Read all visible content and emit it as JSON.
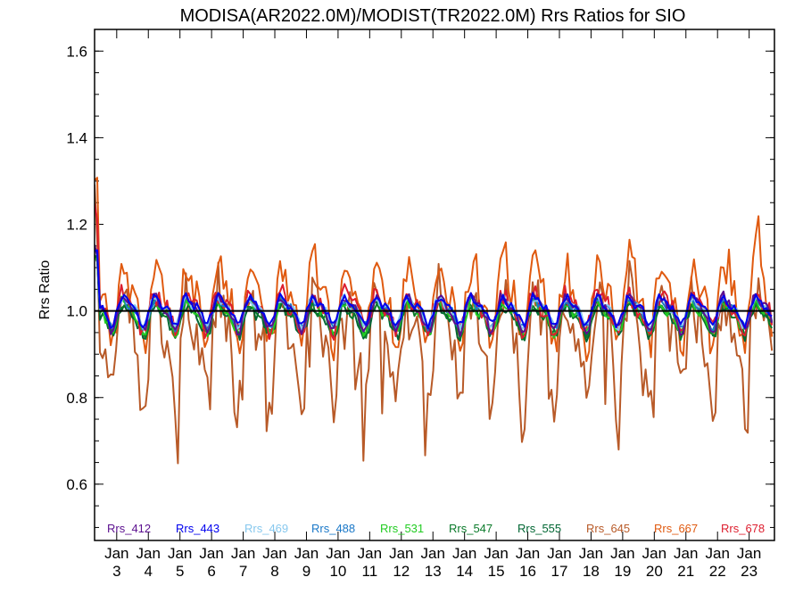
{
  "chart_data": {
    "type": "line",
    "title": "MODISA(AR2022.0M)/MODIST(TR2022.0M)  Rrs Ratios for SIO",
    "xlabel": "",
    "ylabel": "Rrs Ratio",
    "ylim": [
      0.47,
      1.65
    ],
    "yticks": [
      "0.6",
      "0.8",
      "1.0",
      "1.2",
      "1.4",
      "1.6"
    ],
    "xlim": [
      2.3,
      23.8
    ],
    "xticks": [
      {
        "v": 3,
        "top": "Jan",
        "bot": "3"
      },
      {
        "v": 4,
        "top": "Jan",
        "bot": "4"
      },
      {
        "v": 5,
        "top": "Jan",
        "bot": "5"
      },
      {
        "v": 6,
        "top": "Jan",
        "bot": "6"
      },
      {
        "v": 7,
        "top": "Jan",
        "bot": "7"
      },
      {
        "v": 8,
        "top": "Jan",
        "bot": "8"
      },
      {
        "v": 9,
        "top": "Jan",
        "bot": "9"
      },
      {
        "v": 10,
        "top": "Jan",
        "bot": "10"
      },
      {
        "v": 11,
        "top": "Jan",
        "bot": "11"
      },
      {
        "v": 12,
        "top": "Jan",
        "bot": "12"
      },
      {
        "v": 13,
        "top": "Jan",
        "bot": "13"
      },
      {
        "v": 14,
        "top": "Jan",
        "bot": "14"
      },
      {
        "v": 15,
        "top": "Jan",
        "bot": "15"
      },
      {
        "v": 16,
        "top": "Jan",
        "bot": "16"
      },
      {
        "v": 17,
        "top": "Jan",
        "bot": "17"
      },
      {
        "v": 18,
        "top": "Jan",
        "bot": "18"
      },
      {
        "v": 19,
        "top": "Jan",
        "bot": "19"
      },
      {
        "v": 20,
        "top": "Jan",
        "bot": "20"
      },
      {
        "v": 21,
        "top": "Jan",
        "bot": "21"
      },
      {
        "v": 22,
        "top": "Jan",
        "bot": "22"
      },
      {
        "v": 23,
        "top": "Jan",
        "bot": "23"
      }
    ],
    "reference_line": 1.0,
    "legend_position": "bottom",
    "series": [
      {
        "name": "Rrs_412",
        "color": "#5b0f8f",
        "amp": 0.055,
        "noise": 0.012,
        "base": 0.998
      },
      {
        "name": "Rrs_443",
        "color": "#0000ee",
        "amp": 0.045,
        "noise": 0.01,
        "base": 1.003
      },
      {
        "name": "Rrs_469",
        "color": "#87c8ee",
        "amp": 0.045,
        "noise": 0.01,
        "base": 1.0
      },
      {
        "name": "Rrs_488",
        "color": "#1a78c8",
        "amp": 0.045,
        "noise": 0.011,
        "base": 0.998
      },
      {
        "name": "Rrs_531",
        "color": "#22cc22",
        "amp": 0.05,
        "noise": 0.014,
        "base": 0.99
      },
      {
        "name": "Rrs_547",
        "color": "#0a7a2a",
        "amp": 0.05,
        "noise": 0.014,
        "base": 0.985
      },
      {
        "name": "Rrs_555",
        "color": "#006633",
        "amp": 0.05,
        "noise": 0.015,
        "base": 0.982
      },
      {
        "name": "Rrs_645",
        "color": "#b85a28",
        "amp": 0.18,
        "noise": 0.07,
        "base": 0.93
      },
      {
        "name": "Rrs_667",
        "color": "#e05a10",
        "amp": 0.13,
        "noise": 0.04,
        "base": 1.02
      },
      {
        "name": "Rrs_678",
        "color": "#dd1e2e",
        "amp": 0.06,
        "noise": 0.025,
        "base": 1.0
      }
    ]
  }
}
